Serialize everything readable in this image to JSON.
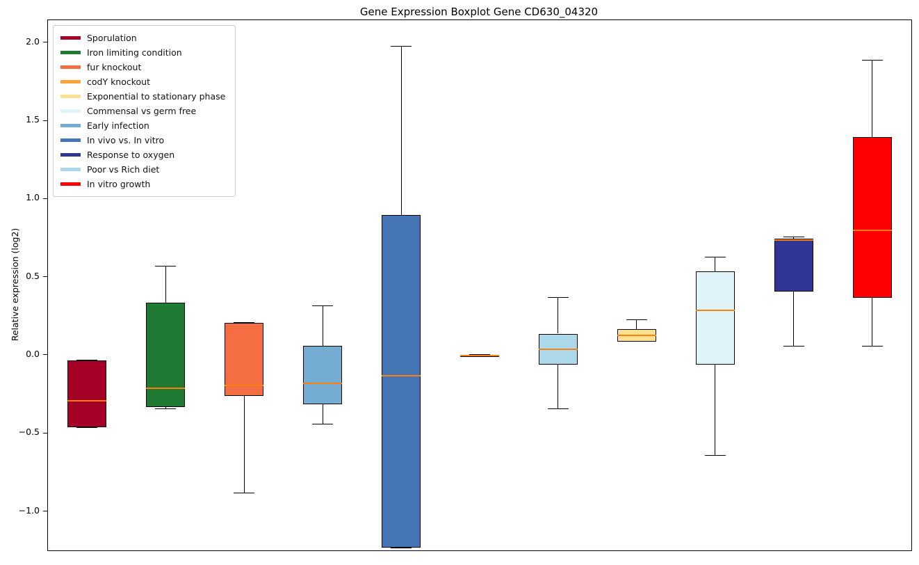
{
  "chart_data": {
    "type": "boxplot",
    "title": "Gene Expression Boxplot Gene CD630_04320",
    "xlabel": "",
    "ylabel": "Relative expression (log2)",
    "ylim": [
      -1.247,
      2.146
    ],
    "yticks": [
      2.0,
      1.5,
      1.0,
      0.5,
      0.0,
      -0.5,
      -1.0
    ],
    "grid": false,
    "legend_position": "upper-left",
    "median_color": "#ff7f0e",
    "box_edge_color": "#000000",
    "legend": [
      {
        "label": "Sporulation",
        "color": "#a50026"
      },
      {
        "label": "Iron limiting condition",
        "color": "#1f7a33"
      },
      {
        "label": "fur knockout",
        "color": "#f46d43"
      },
      {
        "label": "codY knockout",
        "color": "#faa43a"
      },
      {
        "label": "Exponential to stationary phase",
        "color": "#fee090"
      },
      {
        "label": "Commensal vs germ free",
        "color": "#e0f3f8"
      },
      {
        "label": "Early infection",
        "color": "#74add1"
      },
      {
        "label": "In vivo vs. In vitro",
        "color": "#4575b4"
      },
      {
        "label": "Response to oxygen",
        "color": "#313695"
      },
      {
        "label": "Poor vs Rich diet",
        "color": "#abd9e9"
      },
      {
        "label": "In vitro growth",
        "color": "#ff0000"
      }
    ],
    "boxes": [
      {
        "label": "Sporulation",
        "color": "#a50026",
        "whisker_low": -0.46,
        "q1": -0.46,
        "median": -0.29,
        "q3": -0.03,
        "whisker_high": -0.03
      },
      {
        "label": "Iron limiting condition",
        "color": "#1f7a33",
        "whisker_low": -0.34,
        "q1": -0.33,
        "median": -0.21,
        "q3": 0.34,
        "whisker_high": 0.57
      },
      {
        "label": "fur knockout",
        "color": "#f46d43",
        "whisker_low": -0.88,
        "q1": -0.26,
        "median": -0.19,
        "q3": 0.21,
        "whisker_high": 0.21
      },
      {
        "label": "Early infection",
        "color": "#74add1",
        "whisker_low": -0.44,
        "q1": -0.31,
        "median": -0.18,
        "q3": 0.06,
        "whisker_high": 0.32
      },
      {
        "label": "In vivo vs. In vitro",
        "color": "#4575b4",
        "whisker_low": -1.23,
        "q1": -1.23,
        "median": -0.13,
        "q3": 0.9,
        "whisker_high": 1.98
      },
      {
        "label": "codY knockout",
        "color": "#faa43a",
        "whisker_low": -0.005,
        "q1": -0.005,
        "median": 0.0,
        "q3": 0.005,
        "whisker_high": 0.005
      },
      {
        "label": "Poor vs Rich diet",
        "color": "#abd9e9",
        "whisker_low": -0.34,
        "q1": -0.06,
        "median": 0.04,
        "q3": 0.14,
        "whisker_high": 0.37
      },
      {
        "label": "Exponential to stationary phase",
        "color": "#fee090",
        "whisker_low": 0.09,
        "q1": 0.09,
        "median": 0.13,
        "q3": 0.17,
        "whisker_high": 0.23
      },
      {
        "label": "Commensal vs germ free",
        "color": "#e0f3f8",
        "whisker_low": -0.64,
        "q1": -0.06,
        "median": 0.29,
        "q3": 0.54,
        "whisker_high": 0.63
      },
      {
        "label": "Response to oxygen",
        "color": "#313695",
        "whisker_low": 0.06,
        "q1": 0.41,
        "median": 0.74,
        "q3": 0.75,
        "whisker_high": 0.76
      },
      {
        "label": "In vitro growth",
        "color": "#ff0000",
        "whisker_low": 0.06,
        "q1": 0.37,
        "median": 0.8,
        "q3": 1.4,
        "whisker_high": 1.89
      }
    ]
  }
}
